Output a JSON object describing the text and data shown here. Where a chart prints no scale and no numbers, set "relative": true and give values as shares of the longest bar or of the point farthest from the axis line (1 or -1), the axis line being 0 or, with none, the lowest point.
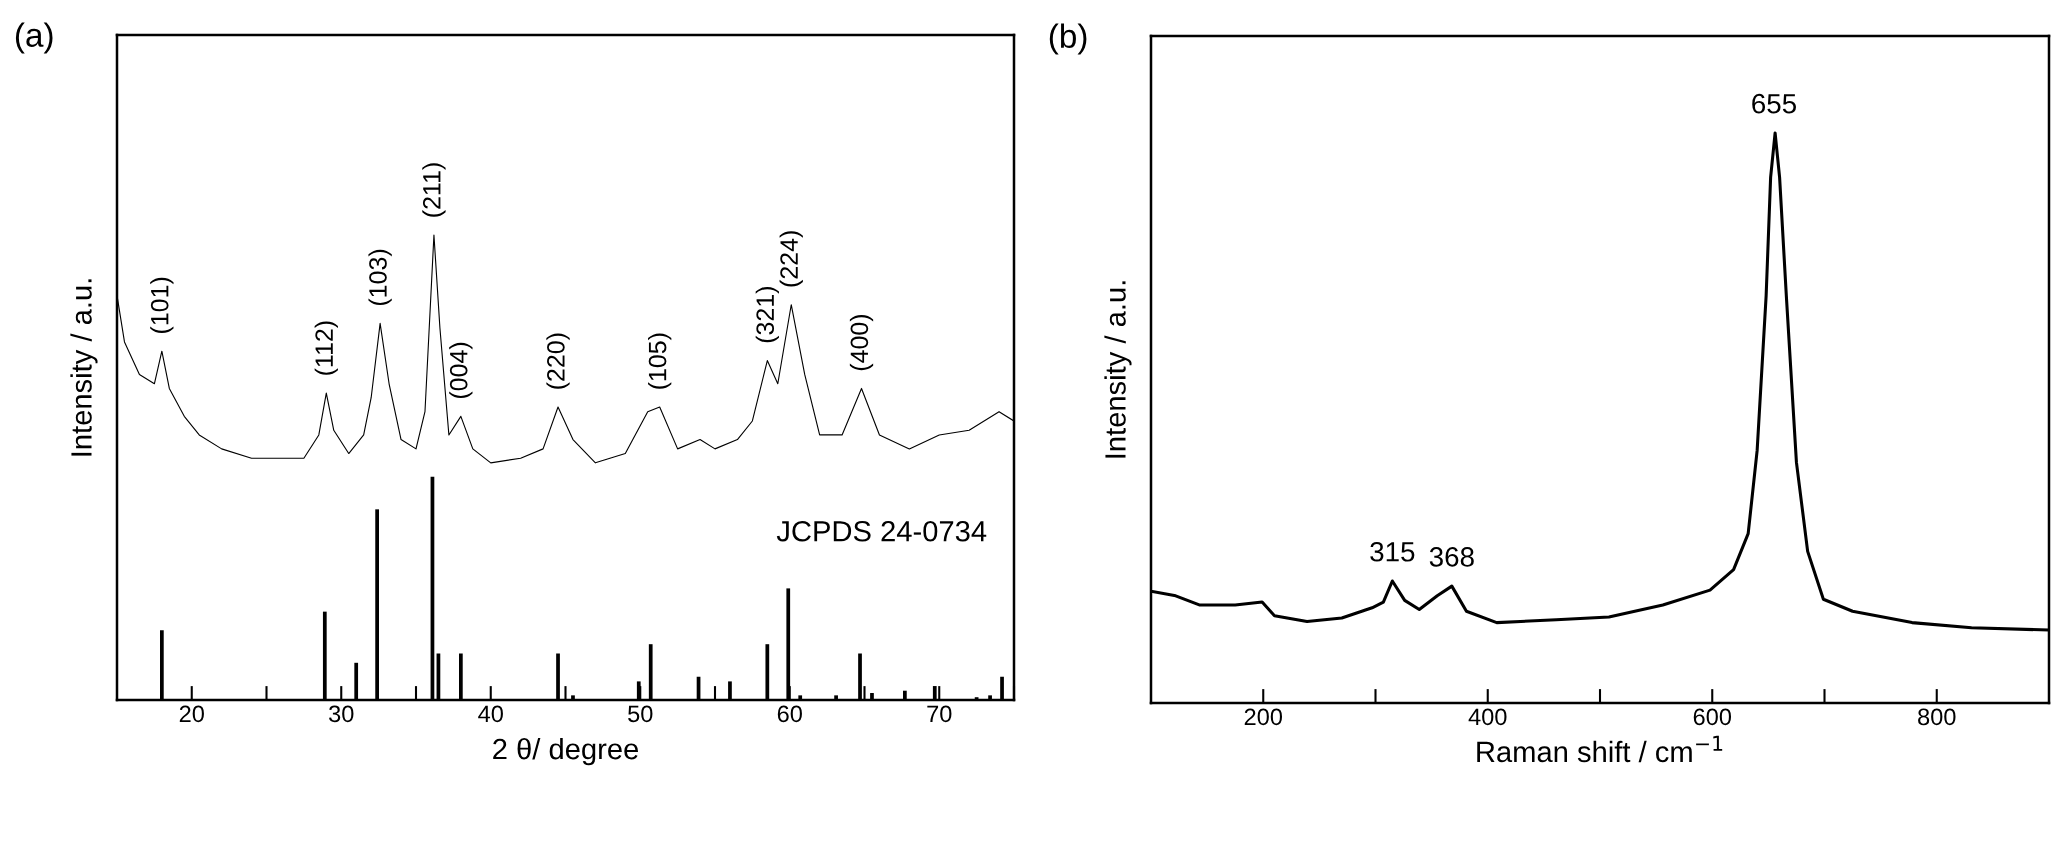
{
  "chart_data": [
    {
      "type": "line",
      "title": "(a)",
      "xlabel": "2 θ/ degree",
      "ylabel": "Intensity / a.u.",
      "relative": true,
      "tick_labels": "x",
      "grid": false,
      "legend": false,
      "xlim": [
        15,
        75
      ],
      "xticks": [
        20,
        {
          "value": 25,
          "label": null
        },
        30,
        {
          "value": 35,
          "label": null
        },
        40,
        {
          "value": 45,
          "label": null
        },
        50,
        {
          "value": 55,
          "label": null
        },
        60,
        {
          "value": 65,
          "label": null
        },
        70,
        {
          "value": 75,
          "label": null
        }
      ],
      "series": [
        {
          "color": "#000000",
          "x": [
            15,
            15.5,
            16.5,
            17.5,
            18.0,
            18.5,
            19.5,
            20.5,
            22,
            24,
            26,
            27.5,
            28.5,
            29.0,
            29.5,
            30.5,
            31.5,
            32.0,
            32.6,
            33.2,
            34,
            35,
            35.6,
            36.2,
            36.6,
            37.2,
            38.0,
            38.8,
            40,
            42,
            43.5,
            44.5,
            45.5,
            47,
            49,
            50.5,
            51.3,
            52.5,
            54,
            55,
            56.5,
            57.5,
            58.5,
            59.2,
            60.1,
            61,
            62,
            63.5,
            64.8,
            66,
            68,
            70,
            72,
            74,
            75
          ],
          "values": [
            0.87,
            0.77,
            0.7,
            0.68,
            0.75,
            0.67,
            0.61,
            0.57,
            0.54,
            0.52,
            0.52,
            0.52,
            0.57,
            0.66,
            0.58,
            0.53,
            0.57,
            0.65,
            0.81,
            0.68,
            0.56,
            0.54,
            0.62,
            1.0,
            0.8,
            0.57,
            0.61,
            0.54,
            0.51,
            0.52,
            0.54,
            0.63,
            0.56,
            0.51,
            0.53,
            0.62,
            0.63,
            0.54,
            0.56,
            0.54,
            0.56,
            0.6,
            0.73,
            0.68,
            0.85,
            0.7,
            0.57,
            0.57,
            0.67,
            0.57,
            0.54,
            0.57,
            0.58,
            0.62,
            0.6
          ]
        },
        {
          "type": "bar",
          "color": "#000000",
          "x": [
            18.0,
            28.9,
            31.0,
            32.4,
            36.1,
            36.5,
            38.0,
            44.5,
            45.5,
            49.9,
            50.7,
            53.9,
            56.0,
            58.5,
            59.9,
            60.7,
            63.1,
            64.7,
            65.5,
            67.7,
            69.7,
            72.5,
            73.4,
            74.2
          ],
          "values": [
            0.15,
            0.19,
            0.08,
            0.41,
            0.48,
            0.1,
            0.1,
            0.1,
            0.01,
            0.04,
            0.12,
            0.05,
            0.04,
            0.12,
            0.24,
            0.01,
            0.01,
            0.1,
            0.015,
            0.02,
            0.03,
            0.006,
            0.01,
            0.05
          ]
        }
      ],
      "annotations": [
        {
          "text": "(101)",
          "x": 18.0,
          "y": 0.75
        },
        {
          "text": "(112)",
          "x": 29.0,
          "y": 0.66
        },
        {
          "text": "(103)",
          "x": 32.6,
          "y": 0.81
        },
        {
          "text": "(211)",
          "x": 36.2,
          "y": 1.0
        },
        {
          "text": "(004)",
          "x": 38.0,
          "y": 0.61
        },
        {
          "text": "(220)",
          "x": 44.5,
          "y": 0.63
        },
        {
          "text": "(105)",
          "x": 51.3,
          "y": 0.63
        },
        {
          "text": "(321)",
          "x": 58.5,
          "y": 0.73
        },
        {
          "text": "(224)",
          "x": 60.1,
          "y": 0.85
        },
        {
          "text": "(400)",
          "x": 64.8,
          "y": 0.67
        },
        "JCPDS 24-0734"
      ]
    },
    {
      "type": "line",
      "title": "(b)",
      "xlabel": "Raman shift / cm$^{−1}$",
      "ylabel": "Intensity / a.u.",
      "relative": true,
      "tick_labels": "x",
      "grid": false,
      "legend": false,
      "xlim": [
        100,
        900
      ],
      "xticks": [
        200,
        {
          "value": 300,
          "label": null
        },
        400,
        {
          "value": 500,
          "label": null
        },
        600,
        {
          "value": 700,
          "label": null
        },
        800
      ],
      "series": [
        {
          "color": "#000000",
          "x": [
            100,
            122,
            143,
            175,
            199,
            210,
            239,
            270,
            297,
            307,
            315,
            326,
            339,
            355,
            368,
            381,
            408,
            461,
            508,
            556,
            598,
            619,
            632,
            640,
            648,
            652,
            656,
            660,
            666,
            675,
            685,
            699,
            725,
            778,
            831,
            899
          ],
          "values": [
            0.196,
            0.188,
            0.172,
            0.172,
            0.177,
            0.153,
            0.143,
            0.149,
            0.167,
            0.177,
            0.214,
            0.18,
            0.164,
            0.188,
            0.205,
            0.161,
            0.141,
            0.146,
            0.151,
            0.172,
            0.198,
            0.234,
            0.297,
            0.443,
            0.714,
            0.922,
            1.0,
            0.922,
            0.714,
            0.422,
            0.266,
            0.182,
            0.161,
            0.141,
            0.132,
            0.128
          ]
        }
      ],
      "annotations": [
        {
          "text": "315",
          "x": 315,
          "y": 0.214
        },
        {
          "text": "368",
          "x": 368,
          "y": 0.205
        },
        {
          "text": "655",
          "x": 655,
          "y": 1.0
        }
      ]
    }
  ]
}
